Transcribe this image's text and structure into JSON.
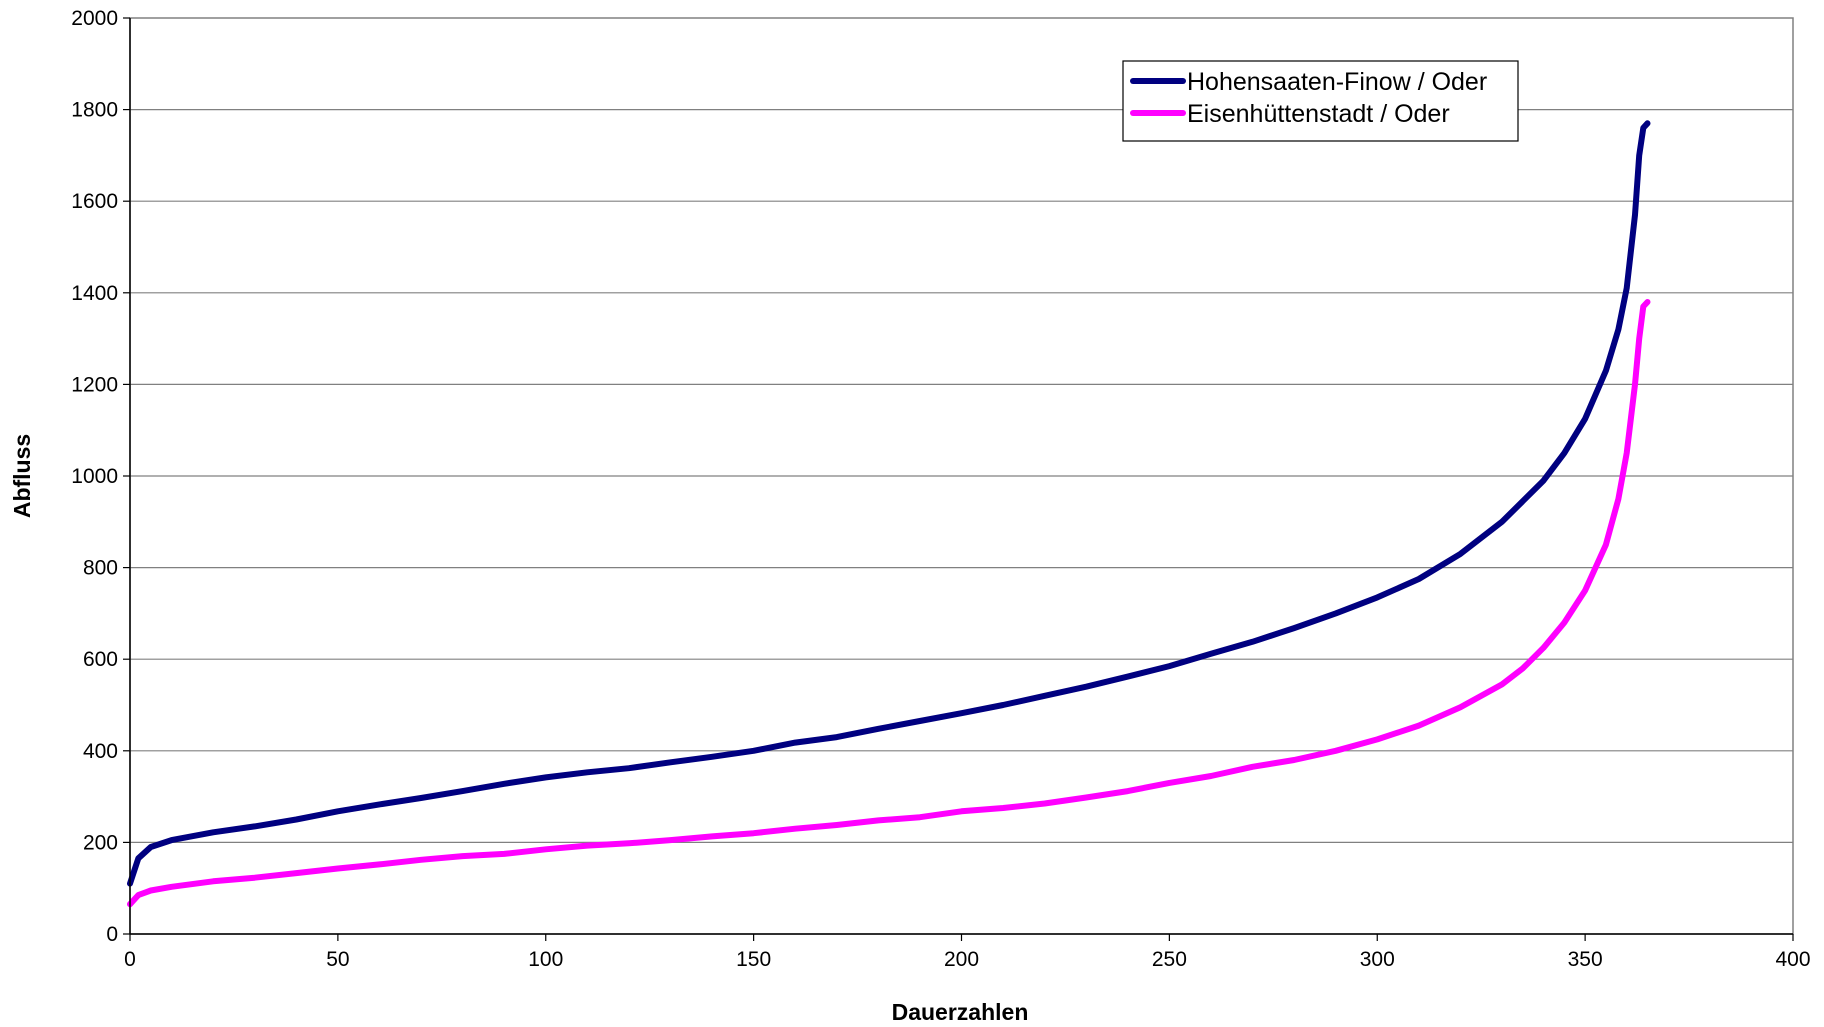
{
  "chart_data": {
    "type": "line",
    "xlabel": "Dauerzahlen",
    "ylabel": "Abfluss",
    "xlim": [
      0,
      400
    ],
    "ylim": [
      0,
      2000
    ],
    "x_ticks": [
      0,
      50,
      100,
      150,
      200,
      250,
      300,
      350,
      400
    ],
    "y_ticks": [
      0,
      200,
      400,
      600,
      800,
      1000,
      1200,
      1400,
      1600,
      1800,
      2000
    ],
    "grid": "horizontal",
    "legend_position": "top-right",
    "series": [
      {
        "name": "Hohensaaten-Finow / Oder",
        "color": "#000080",
        "x": [
          0,
          2,
          5,
          10,
          20,
          30,
          40,
          50,
          60,
          70,
          80,
          90,
          100,
          110,
          120,
          130,
          140,
          150,
          160,
          170,
          180,
          190,
          200,
          210,
          220,
          230,
          240,
          250,
          260,
          270,
          280,
          290,
          300,
          310,
          320,
          330,
          340,
          345,
          350,
          355,
          358,
          360,
          362,
          363,
          364,
          365
        ],
        "y": [
          110,
          165,
          190,
          205,
          222,
          235,
          250,
          268,
          283,
          297,
          312,
          328,
          342,
          353,
          362,
          375,
          387,
          400,
          418,
          430,
          448,
          465,
          482,
          500,
          520,
          540,
          562,
          585,
          612,
          638,
          668,
          700,
          735,
          775,
          830,
          900,
          990,
          1050,
          1125,
          1230,
          1320,
          1410,
          1570,
          1700,
          1760,
          1770
        ]
      },
      {
        "name": "Eisenhüttenstadt / Oder",
        "color": "#ff00ff",
        "x": [
          0,
          2,
          5,
          10,
          20,
          30,
          40,
          50,
          60,
          70,
          80,
          90,
          100,
          110,
          120,
          130,
          140,
          150,
          160,
          170,
          180,
          190,
          200,
          210,
          220,
          230,
          240,
          250,
          260,
          270,
          280,
          290,
          300,
          310,
          320,
          330,
          335,
          340,
          345,
          350,
          355,
          358,
          360,
          362,
          363,
          364,
          365
        ],
        "y": [
          65,
          85,
          95,
          103,
          115,
          123,
          133,
          143,
          152,
          162,
          170,
          175,
          185,
          193,
          198,
          205,
          213,
          220,
          230,
          238,
          248,
          255,
          268,
          275,
          285,
          298,
          312,
          330,
          345,
          365,
          380,
          400,
          425,
          455,
          495,
          545,
          580,
          625,
          680,
          750,
          850,
          950,
          1050,
          1200,
          1300,
          1370,
          1380
        ]
      }
    ]
  }
}
